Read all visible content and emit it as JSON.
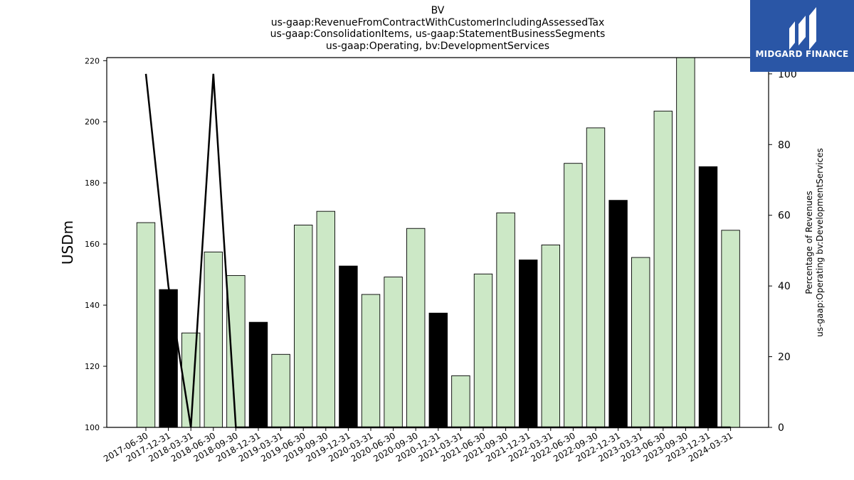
{
  "chart_data": {
    "type": "bar",
    "title_lines": [
      "BV",
      "us-gaap:RevenueFromContractWithCustomerIncludingAssessedTax",
      "us-gaap:ConsolidationItems, us-gaap:StatementBusinessSegments",
      "us-gaap:Operating, bv:DevelopmentServices"
    ],
    "ylabel": "USDm",
    "y2label_lines": [
      "Percentage of Revenues",
      "us-gaap:Operating bv:DevelopmentServices"
    ],
    "ylim": [
      100,
      221
    ],
    "y2lim": [
      0,
      104.6
    ],
    "yticks": [
      100,
      120,
      140,
      160,
      180,
      200,
      220
    ],
    "y2ticks": [
      0,
      20,
      40,
      60,
      80,
      100
    ],
    "categories": [
      "2017-06-30",
      "2017-12-31",
      "2018-03-31",
      "2018-06-30",
      "2018-09-30",
      "2018-12-31",
      "2019-03-31",
      "2019-06-30",
      "2019-09-30",
      "2019-12-31",
      "2020-03-31",
      "2020-06-30",
      "2020-09-30",
      "2020-12-31",
      "2021-03-31",
      "2021-06-30",
      "2021-09-30",
      "2021-12-31",
      "2022-03-31",
      "2022-06-30",
      "2022-09-30",
      "2022-12-31",
      "2023-03-31",
      "2023-06-30",
      "2023-09-30",
      "2023-12-31",
      "2024-03-31"
    ],
    "values": [
      167.0,
      145.1,
      130.9,
      157.4,
      149.7,
      134.4,
      123.9,
      166.2,
      170.7,
      152.8,
      143.5,
      149.2,
      165.1,
      137.4,
      116.9,
      150.2,
      170.2,
      154.8,
      159.7,
      186.4,
      198.0,
      174.3,
      155.6,
      203.5,
      221.0,
      185.3,
      164.5
    ],
    "bar_colors": [
      "#cce8c6",
      "#000000",
      "#cce8c6",
      "#cce8c6",
      "#cce8c6",
      "#000000",
      "#cce8c6",
      "#cce8c6",
      "#cce8c6",
      "#000000",
      "#cce8c6",
      "#cce8c6",
      "#cce8c6",
      "#000000",
      "#cce8c6",
      "#cce8c6",
      "#cce8c6",
      "#000000",
      "#cce8c6",
      "#cce8c6",
      "#cce8c6",
      "#000000",
      "#cce8c6",
      "#cce8c6",
      "#cce8c6",
      "#000000",
      "#cce8c6"
    ],
    "line_series": {
      "axis": "right",
      "values": [
        100,
        40,
        0,
        100,
        0,
        0,
        0,
        0,
        0,
        0,
        0,
        0,
        0,
        0,
        0,
        0,
        0,
        0,
        0,
        0,
        0,
        0,
        0,
        0,
        0,
        0,
        0
      ]
    },
    "grid": false
  },
  "logo": {
    "text": "MIDGARD FINANCE",
    "color": "#2a56a6"
  }
}
